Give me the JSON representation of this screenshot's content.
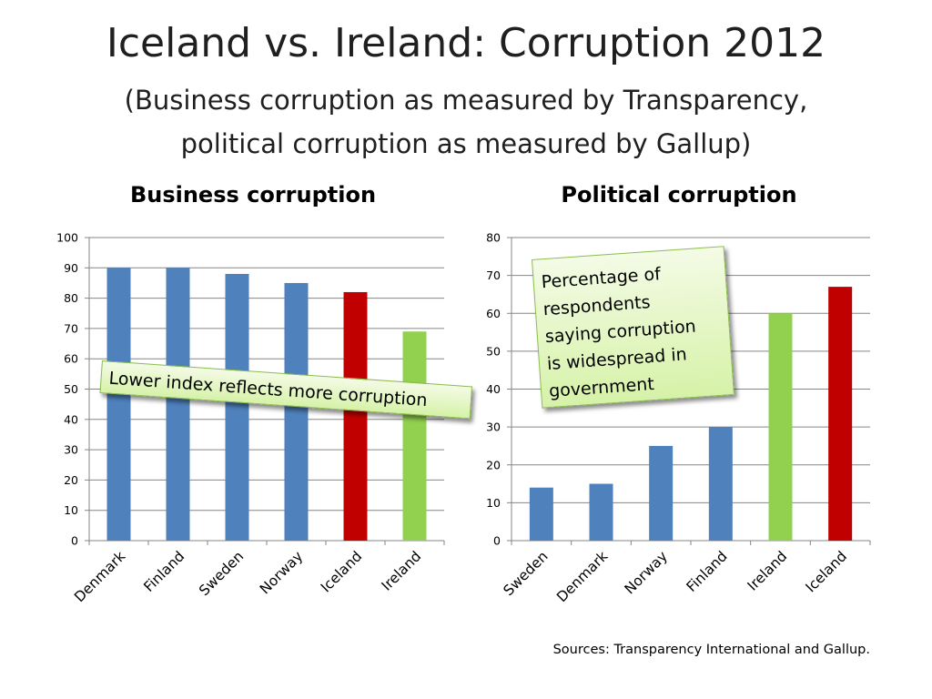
{
  "slide": {
    "title": "Iceland vs. Ireland: Corruption 2012",
    "subtitle_line1": "(Business corruption as measured by Transparency,",
    "subtitle_line2": "political corruption as measured by Gallup)",
    "sources": "Sources: Transparency International and Gallup."
  },
  "colors": {
    "blue": "#4f81bd",
    "red": "#c00000",
    "green": "#92d050",
    "grid": "#868686"
  },
  "chart_data": [
    {
      "type": "bar",
      "title": "Business corruption",
      "categories": [
        "Denmark",
        "Finland",
        "Sweden",
        "Norway",
        "Iceland",
        "Ireland"
      ],
      "values": [
        90,
        90,
        88,
        85,
        82,
        69
      ],
      "bar_colors": [
        "#4f81bd",
        "#4f81bd",
        "#4f81bd",
        "#4f81bd",
        "#c00000",
        "#92d050"
      ],
      "ylim": [
        0,
        100
      ],
      "yticks": [
        0,
        10,
        20,
        30,
        40,
        50,
        60,
        70,
        80,
        90,
        100
      ],
      "grid": true,
      "annotation": "Lower index reflects more corruption"
    },
    {
      "type": "bar",
      "title": "Political corruption",
      "categories": [
        "Sweden",
        "Denmark",
        "Norway",
        "Finland",
        "Ireland",
        "Iceland"
      ],
      "values": [
        14,
        15,
        25,
        30,
        60,
        67
      ],
      "bar_colors": [
        "#4f81bd",
        "#4f81bd",
        "#4f81bd",
        "#4f81bd",
        "#92d050",
        "#c00000"
      ],
      "ylim": [
        0,
        80
      ],
      "yticks": [
        0,
        10,
        20,
        30,
        40,
        50,
        60,
        70,
        80
      ],
      "grid": true,
      "annotation_lines": [
        "Percentage of",
        "respondents",
        "saying corruption",
        "is widespread in",
        "government"
      ]
    }
  ]
}
